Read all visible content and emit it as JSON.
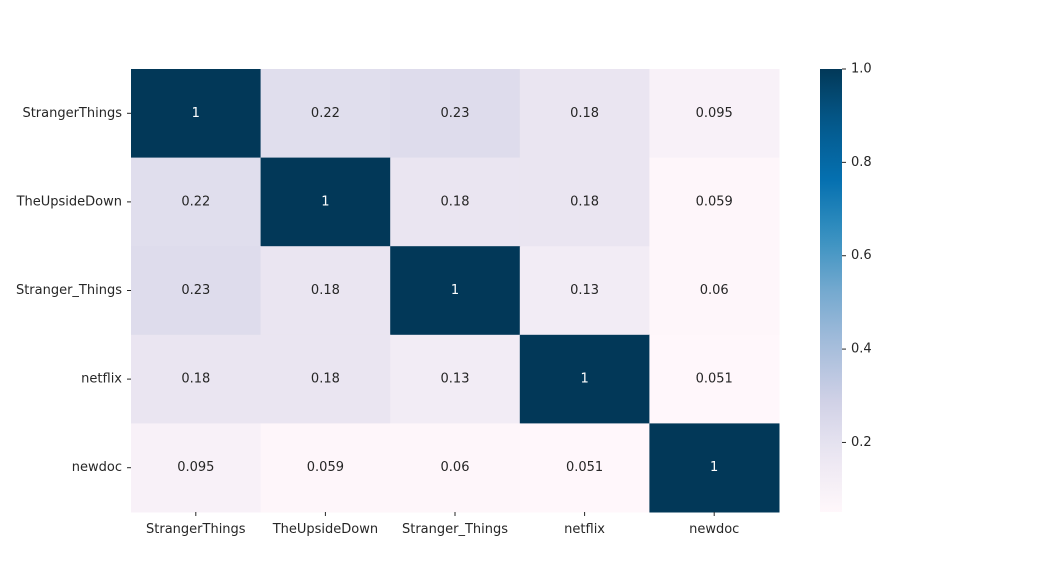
{
  "chart_data": {
    "type": "heatmap",
    "title": "",
    "xlabel": "",
    "ylabel": "",
    "x_labels": [
      "StrangerThings",
      "TheUpsideDown",
      "Stranger_Things",
      "netflix",
      "newdoc"
    ],
    "y_labels": [
      "StrangerThings",
      "TheUpsideDown",
      "Stranger_Things",
      "netflix",
      "newdoc"
    ],
    "values": [
      [
        1,
        0.22,
        0.23,
        0.18,
        0.095
      ],
      [
        0.22,
        1,
        0.18,
        0.18,
        0.059
      ],
      [
        0.23,
        0.18,
        1,
        0.13,
        0.06
      ],
      [
        0.18,
        0.18,
        0.13,
        1,
        0.051
      ],
      [
        0.095,
        0.059,
        0.06,
        0.051,
        1
      ]
    ],
    "annotations": [
      [
        "1",
        "0.22",
        "0.23",
        "0.18",
        "0.095"
      ],
      [
        "0.22",
        "1",
        "0.18",
        "0.18",
        "0.059"
      ],
      [
        "0.23",
        "0.18",
        "1",
        "0.13",
        "0.06"
      ],
      [
        "0.18",
        "0.18",
        "0.13",
        "1",
        "0.051"
      ],
      [
        "0.095",
        "0.059",
        "0.06",
        "0.051",
        "1"
      ]
    ],
    "colormap": "PuBu",
    "vmin": 0.051,
    "vmax": 1.0,
    "colorbar_ticks": [
      0.2,
      0.4,
      0.6,
      0.8,
      1.0
    ],
    "colorbar_tick_labels": [
      "0.2",
      "0.4",
      "0.6",
      "0.8",
      "1.0"
    ],
    "grid": false,
    "colorbar_position": "right"
  }
}
